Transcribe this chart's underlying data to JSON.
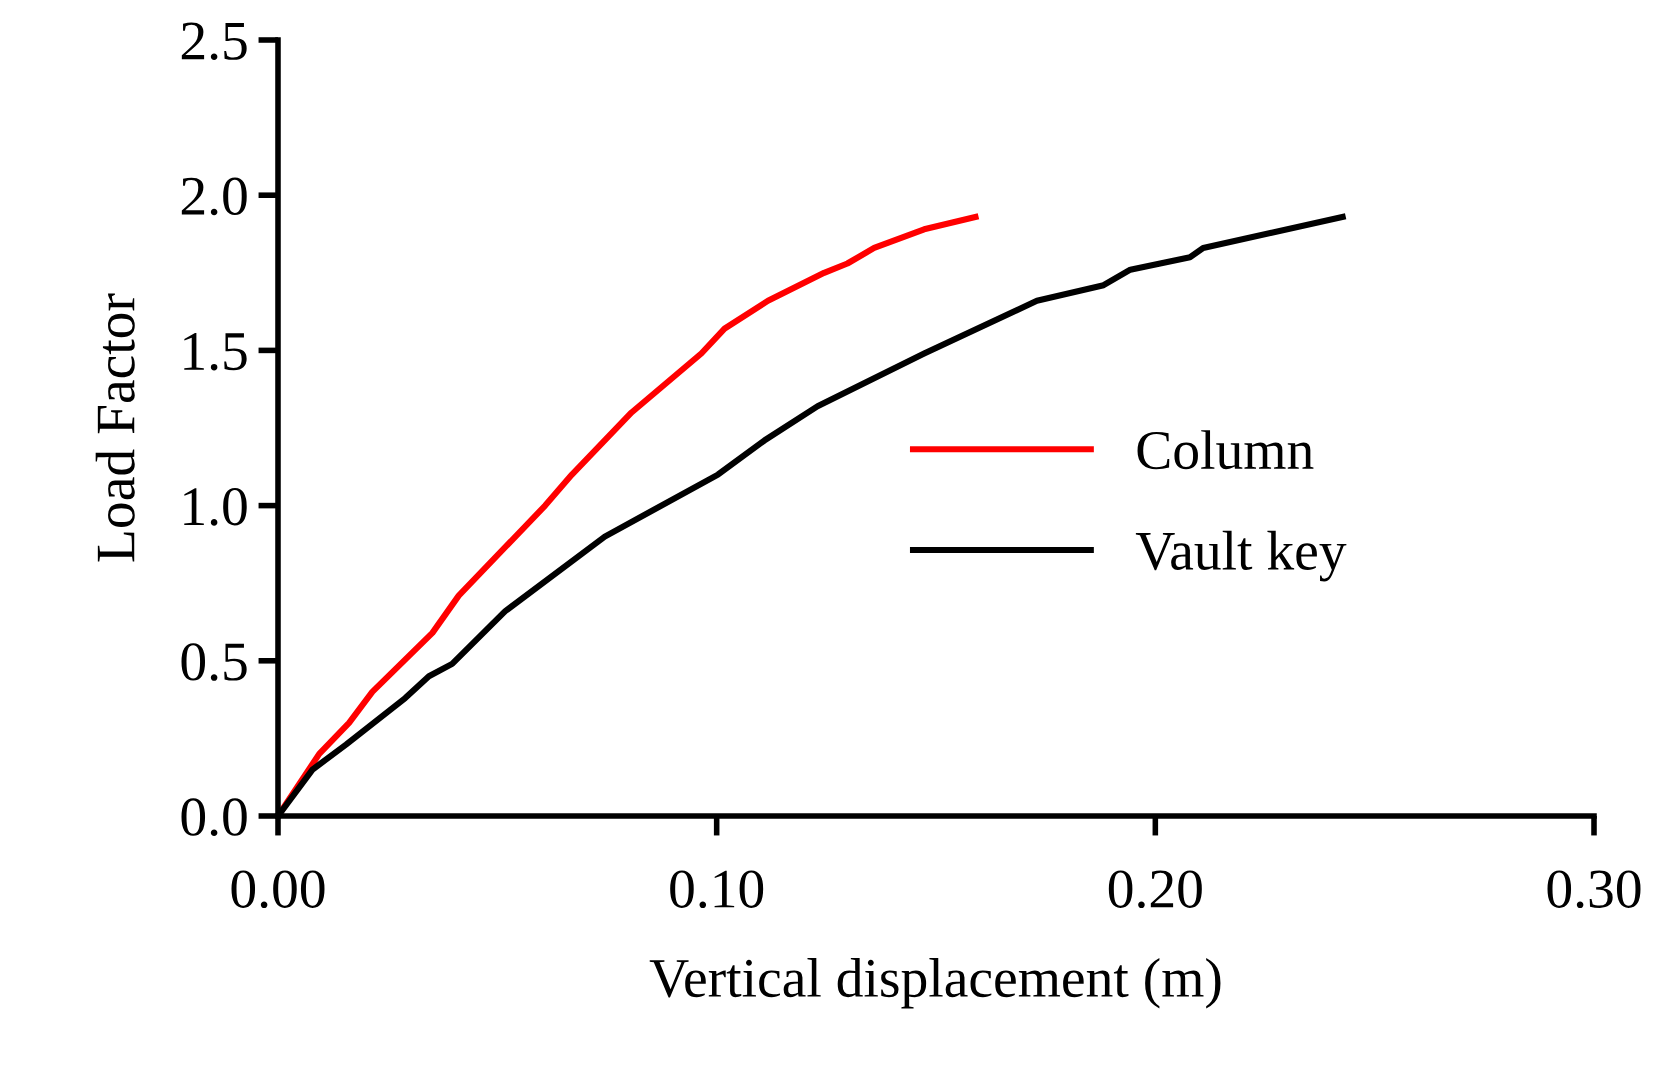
{
  "chart_data": {
    "type": "line",
    "xlabel": "Vertical displacement (m)",
    "ylabel": "Load Factor",
    "xlim": [
      0,
      0.3
    ],
    "xticks": [
      {
        "value": 0,
        "label": "0.00"
      },
      {
        "value": 0.1,
        "label": "0.10"
      },
      {
        "value": 0.2,
        "label": "0.20"
      },
      {
        "value": 0.3,
        "label": "0.30"
      }
    ],
    "ylim": [
      0,
      2.5
    ],
    "yticks": [
      {
        "value": 0,
        "label": "0.0"
      },
      {
        "value": 0.5,
        "label": "0.5"
      },
      {
        "value": 1,
        "label": "1.0"
      },
      {
        "value": 1.5,
        "label": "1.5"
      },
      {
        "value": 2,
        "label": "2.0"
      },
      {
        "value": 2.5,
        "label": "2.5"
      }
    ],
    "grid": false,
    "legend": "right",
    "marker": "none",
    "line_style": "solid",
    "series": [
      {
        "name": "Column",
        "color": "#ff0000",
        "x": [
          0,
          0.0094,
          0.0162,
          0.0215,
          0.0352,
          0.0412,
          0.0609,
          0.067,
          0.0806,
          0.0965,
          0.1018,
          0.1117,
          0.1245,
          0.1298,
          0.1359,
          0.1473,
          0.159
        ],
        "values": [
          0,
          0.2,
          0.3,
          0.4,
          0.59,
          0.71,
          1.0,
          1.1,
          1.3,
          1.49,
          1.57,
          1.66,
          1.75,
          1.78,
          1.83,
          1.89,
          1.93
        ]
      },
      {
        "name": "Vault key",
        "color": "#000000",
        "x": [
          0,
          0.0079,
          0.0155,
          0.029,
          0.0344,
          0.0397,
          0.0518,
          0.0745,
          0.1003,
          0.1109,
          0.123,
          0.1473,
          0.173,
          0.1882,
          0.1943,
          0.2079,
          0.2109,
          0.2427
        ],
        "values": [
          0,
          0.15,
          0.23,
          0.38,
          0.45,
          0.49,
          0.66,
          0.9,
          1.1,
          1.21,
          1.32,
          1.49,
          1.66,
          1.71,
          1.76,
          1.8,
          1.83,
          1.93
        ]
      }
    ]
  }
}
